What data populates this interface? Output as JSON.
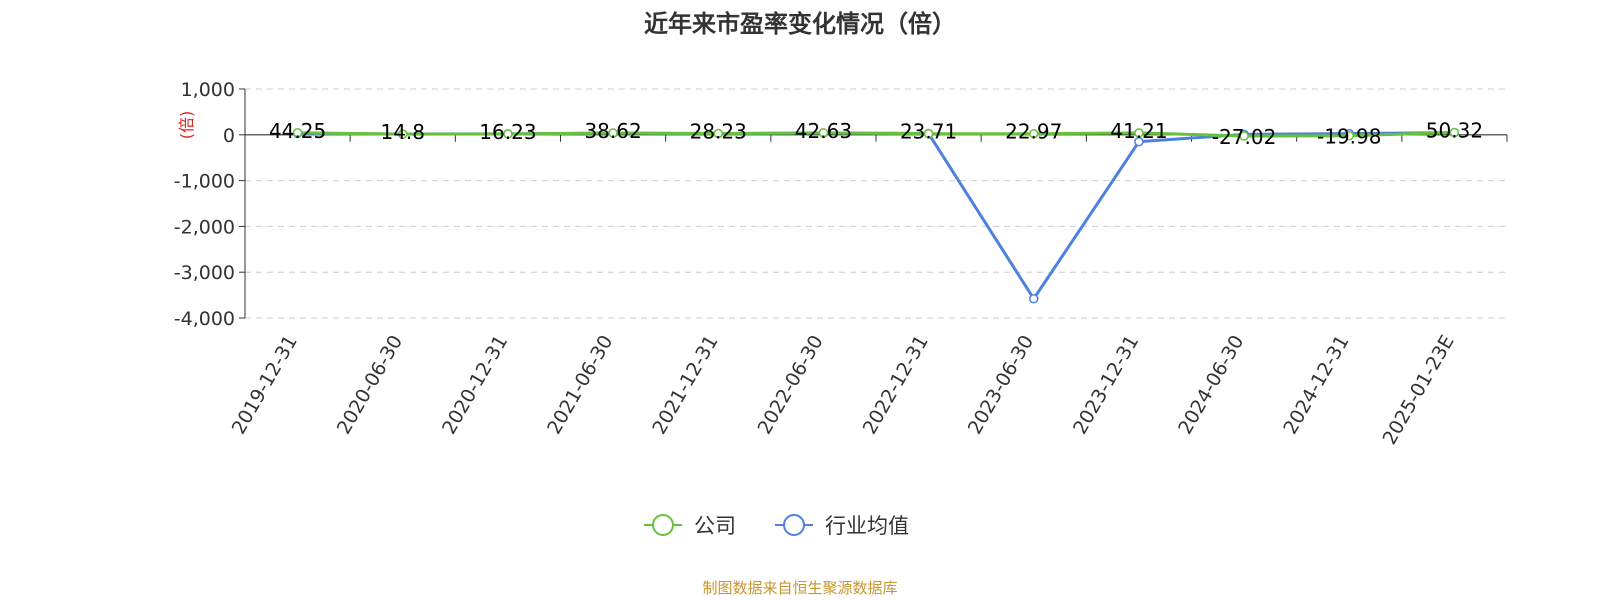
{
  "chart_data": {
    "type": "line",
    "title": "近年来市盈率变化情况（倍）",
    "ylabel": "(倍)",
    "ylim": [
      -4000,
      1000
    ],
    "y_ticks": [
      1000,
      0,
      -1000,
      -2000,
      -3000,
      -4000
    ],
    "y_tick_labels": [
      "1,000",
      "0",
      "-1,000",
      "-2,000",
      "-3,000",
      "-4,000"
    ],
    "categories": [
      "2019-12-31",
      "2020-06-30",
      "2020-12-31",
      "2021-06-30",
      "2021-12-31",
      "2022-06-30",
      "2022-12-31",
      "2023-06-30",
      "2023-12-31",
      "2024-06-30",
      "2024-12-31",
      "2025-01-23E"
    ],
    "series": [
      {
        "name": "公司",
        "color": "#67c23a",
        "values": [
          44.25,
          14.8,
          16.23,
          38.62,
          28.23,
          42.63,
          23.71,
          22.97,
          41.21,
          -27.02,
          -19.98,
          50.32
        ],
        "labels": [
          "44.25",
          "14.8",
          "16.23",
          "38.62",
          "28.23",
          "42.63",
          "23.71",
          "22.97",
          "41.21",
          "-27.02",
          "-19.98",
          "50.32"
        ]
      },
      {
        "name": "行业均值",
        "color": "#4f7fe0",
        "values": [
          30,
          18,
          20,
          36,
          24,
          40,
          28,
          -3580,
          -150,
          10,
          25,
          48
        ]
      }
    ],
    "grid": true,
    "legend": "bottom-center"
  },
  "source": {
    "text": "制图数据来自恒生聚源数据库",
    "color": "#c8962e"
  }
}
